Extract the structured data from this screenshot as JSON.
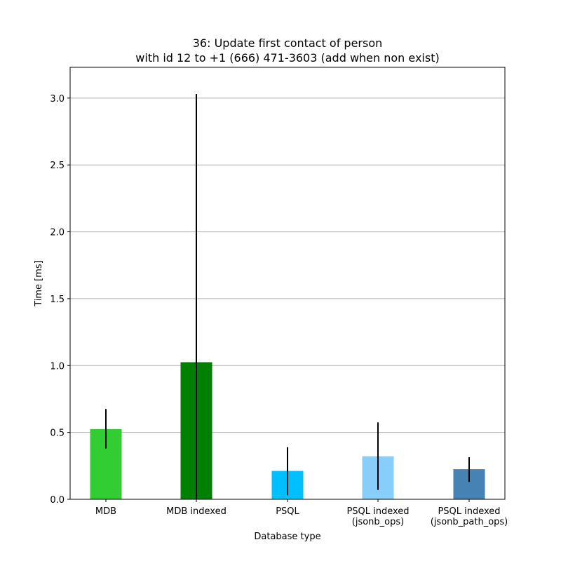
{
  "chart_data": {
    "type": "bar",
    "title_lines": [
      "36: Update first contact of person",
      "with id 12 to +1 (666) 471-3603 (add when non exist)"
    ],
    "xlabel": "Database type",
    "ylabel": "Time [ms]",
    "ylim": [
      0,
      3.23
    ],
    "yticks": [
      "0.0",
      "0.5",
      "1.0",
      "1.5",
      "2.0",
      "2.5",
      "3.0"
    ],
    "grid": "y",
    "categories": [
      [
        "MDB"
      ],
      [
        "MDB indexed"
      ],
      [
        "PSQL"
      ],
      [
        "PSQL indexed",
        "(jsonb_ops)"
      ],
      [
        "PSQL indexed",
        "(jsonb_path_ops)"
      ]
    ],
    "values": [
      0.525,
      1.025,
      0.212,
      0.322,
      0.225
    ],
    "errors": [
      [
        0.38,
        0.675
      ],
      [
        0.0,
        3.03
      ],
      [
        0.03,
        0.39
      ],
      [
        0.07,
        0.575
      ],
      [
        0.13,
        0.315
      ]
    ],
    "colors": [
      "#32cd32",
      "#008000",
      "#00bfff",
      "#87cefa",
      "#4682b4"
    ]
  }
}
